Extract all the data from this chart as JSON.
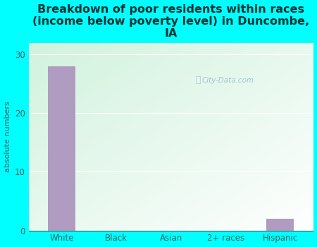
{
  "categories": [
    "White",
    "Black",
    "Asian",
    "2+ races",
    "Hispanic"
  ],
  "values": [
    28,
    0,
    0,
    0,
    2
  ],
  "bar_color": "#b09cc0",
  "title": "Breakdown of poor residents within races\n(income below poverty level) in Duncombe,\nIA",
  "ylabel": "absolute numbers",
  "ylim": [
    0,
    32
  ],
  "yticks": [
    0,
    10,
    20,
    30
  ],
  "bg_color": "#00ffff",
  "plot_bg_topleft": "#c8eec8",
  "plot_bg_bottomright": "#f0fff8",
  "watermark": "City-Data.com",
  "title_fontsize": 11.5,
  "title_color": "#003333",
  "axis_label_fontsize": 8,
  "tick_fontsize": 8.5,
  "tick_color": "#336666"
}
